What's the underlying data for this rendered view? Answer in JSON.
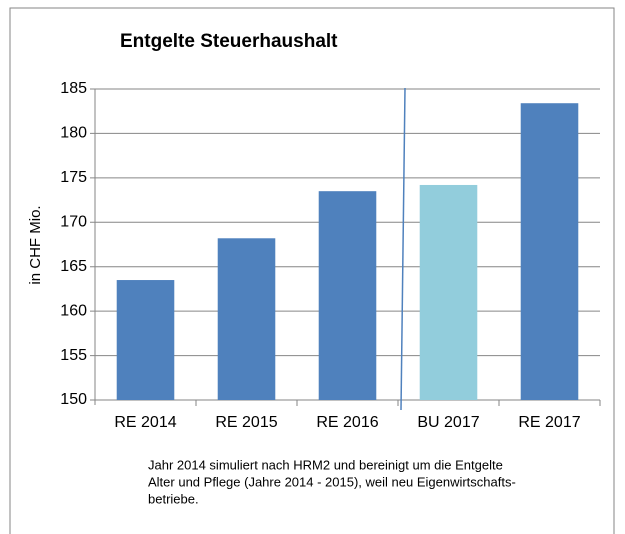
{
  "chart_data": {
    "type": "bar",
    "title": "Entgelte Steuerhaushalt",
    "y_axis_label": "in CHF Mio.",
    "categories": [
      "RE 2014",
      "RE 2015",
      "RE 2016",
      "BU 2017",
      "RE 2017"
    ],
    "values": [
      163.5,
      168.2,
      173.5,
      174.2,
      183.4
    ],
    "colors": [
      "#4f81bd",
      "#4f81bd",
      "#4f81bd",
      "#92cddc",
      "#4f81bd"
    ],
    "ylim": [
      150,
      185
    ],
    "yticks": [
      150,
      155,
      160,
      165,
      170,
      175,
      180,
      185
    ],
    "grid": true,
    "note_lines": [
      "Jahr 2014 simuliert nach HRM2  und bereinigt um die Entgelte",
      "Alter und Pflege (Jahre 2014 - 2015), weil  neu Eigenwirtschafts-",
      "betriebe."
    ]
  }
}
